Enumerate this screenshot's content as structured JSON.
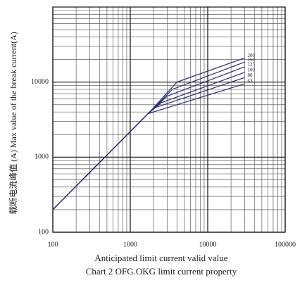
{
  "chart_data": {
    "type": "line",
    "title": "Chart 2 OFG.OKG limit current property",
    "x_label": "Anticipated limit current valid value",
    "y_label": "载断电流峰值 (A) Max value of the break current(A)",
    "xscale": "log",
    "yscale": "log",
    "grid": true,
    "minor_grid": true,
    "color": "#2a2f6e",
    "xlim": [
      100,
      100000
    ],
    "xticks": [
      100,
      1000,
      10000,
      100000
    ],
    "ylim": [
      100,
      100000
    ],
    "yticks": [
      100,
      1000,
      10000
    ],
    "series": [
      {
        "name": "200",
        "x": [
          100,
          1700,
          4000,
          30000
        ],
        "values": [
          200,
          3800,
          10000,
          21000
        ]
      },
      {
        "name": "160",
        "x": [
          100,
          1700,
          3500,
          30000
        ],
        "values": [
          200,
          3800,
          8000,
          18500
        ]
      },
      {
        "name": "125",
        "x": [
          100,
          1700,
          3000,
          30000
        ],
        "values": [
          200,
          3800,
          6500,
          16000
        ]
      },
      {
        "name": "100",
        "x": [
          100,
          1700,
          2500,
          30000
        ],
        "values": [
          200,
          3800,
          5300,
          13500
        ]
      },
      {
        "name": "80",
        "x": [
          100,
          1700,
          2000,
          30000
        ],
        "values": [
          200,
          3800,
          4500,
          11500
        ]
      },
      {
        "name": "63",
        "x": [
          100,
          1700,
          30000
        ],
        "values": [
          200,
          3800,
          9500
        ]
      }
    ]
  }
}
